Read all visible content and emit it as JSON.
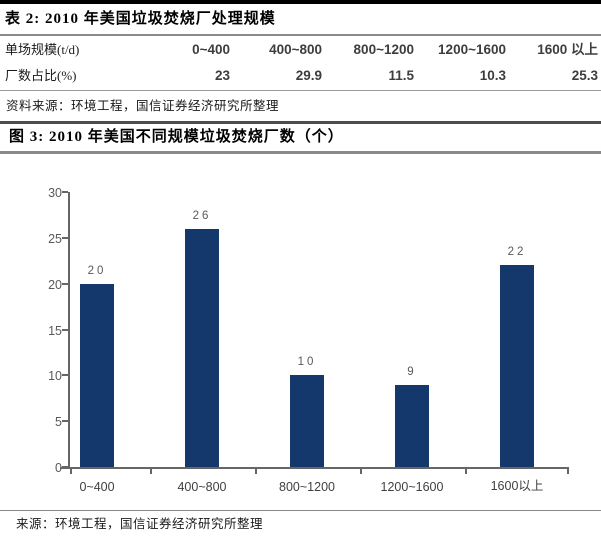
{
  "table2": {
    "title": "表 2: 2010 年美国垃圾焚烧厂处理规模",
    "row1_label": "单场规模(t/d)",
    "row2_label": "厂数占比(%)",
    "columns": [
      "0~400",
      "400~800",
      "800~1200",
      "1200~1600",
      "1600 以上"
    ],
    "values": [
      "23",
      "29.9",
      "11.5",
      "10.3",
      "25.3"
    ],
    "source": "资料来源：环境工程，国信证券经济研究所整理"
  },
  "figure3": {
    "title": "图 3: 2010 年美国不同规模垃圾焚烧厂数（个）",
    "source": "来源：环境工程，国信证券经济研究所整理"
  },
  "chart_data": {
    "type": "bar",
    "title": "2010 年美国不同规模垃圾焚烧厂数（个）",
    "categories": [
      "0~400",
      "400~800",
      "800~1200",
      "1200~1600",
      "1600以上"
    ],
    "values": [
      20,
      26,
      10,
      9,
      22
    ],
    "xlabel": "",
    "ylabel": "",
    "ylim": [
      0,
      30
    ],
    "yticks": [
      0,
      5,
      10,
      15,
      20,
      25,
      30
    ],
    "grid": false,
    "legend_position": "none",
    "bar_color": "#14386B",
    "axis_color": "#666666",
    "tick_label_color": "#595959",
    "value_label_color": "#595959"
  }
}
